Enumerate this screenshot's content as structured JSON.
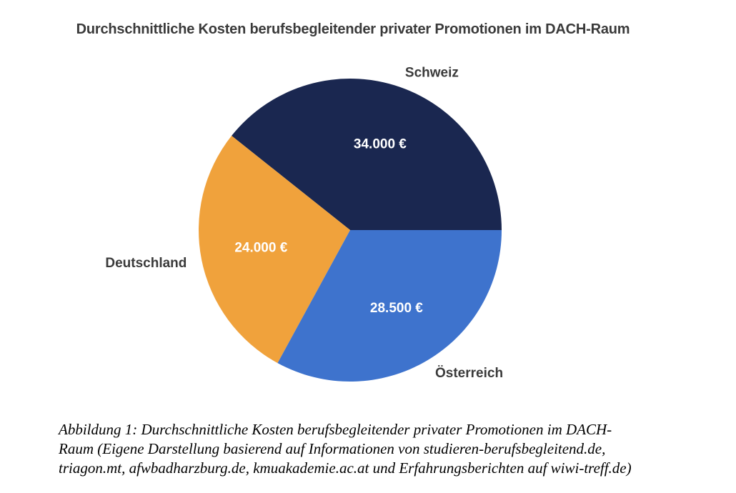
{
  "title": "Durchschnittliche Kosten berufsbegleitender privater Promotionen im DACH-Raum",
  "chart_data": {
    "type": "pie",
    "title": "Durchschnittliche Kosten berufsbegleitender privater Promotionen im DACH-Raum",
    "unit": "EUR",
    "start_angle_deg": 0,
    "direction": "counterclockwise",
    "total": 86500,
    "label_color": "#3a3a3a",
    "value_text_color": "#ffffff",
    "label_distance": 1.1,
    "value_distance": 0.6,
    "slices": [
      {
        "label": "Schweiz",
        "value": 34000,
        "value_label": "34.000 €",
        "color": "#1a2750",
        "percent": 39.3
      },
      {
        "label": "Deutschland",
        "value": 24000,
        "value_label": "24.000 €",
        "color": "#f0a23c",
        "percent": 27.7
      },
      {
        "label": "Österreich",
        "value": 28500,
        "value_label": "28.500 €",
        "color": "#3e73cd",
        "percent": 32.9
      }
    ]
  },
  "caption": {
    "lines": [
      "Abbildung 1: Durchschnittliche Kosten berufsbegleitender privater Promotionen im DACH-",
      "Raum (Eigene Darstellung basierend auf Informationen von studieren-berufsbegleitend.de,",
      "triagon.mt, afwbadharzburg.de, kmuakademie.ac.at und Erfahrungsberichten auf wiwi-treff.de)"
    ]
  }
}
